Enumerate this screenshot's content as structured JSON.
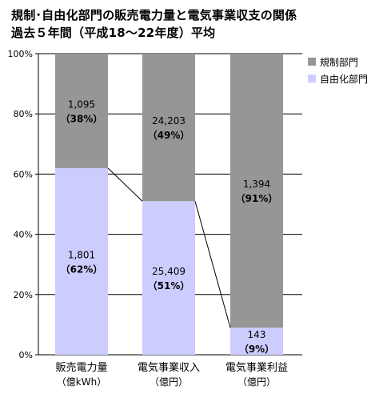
{
  "title": {
    "line1": "規制･自由化部門の販売電力量と電気事業収支の関係",
    "line2": "過去５年間（平成18～22年度）平均"
  },
  "chart_data": {
    "type": "bar",
    "stacked": true,
    "percent": true,
    "categories": [
      [
        "販売電力量",
        "（億kWh）"
      ],
      [
        "電気事業収入",
        "（億円）"
      ],
      [
        "電気事業利益",
        "（億円）"
      ]
    ],
    "series": [
      {
        "name": "自由化部門",
        "color": "#ccccff",
        "values_pct": [
          62,
          51,
          9
        ],
        "labels": [
          "1,801",
          "25,409",
          "143"
        ],
        "pct_labels": [
          "（62%）",
          "（51%）",
          "（9%）"
        ]
      },
      {
        "name": "規制部門",
        "color": "#969696",
        "values_pct": [
          38,
          49,
          91
        ],
        "labels": [
          "1,095",
          "24,203",
          "1,394"
        ],
        "pct_labels": [
          "（38%）",
          "（49%）",
          "（91%）"
        ]
      }
    ],
    "ylim": [
      0,
      100
    ],
    "yticks": [
      "0%",
      "20%",
      "40%",
      "60%",
      "80%",
      "100%"
    ],
    "grid": true,
    "legend": "top-right",
    "series_lines": true
  }
}
